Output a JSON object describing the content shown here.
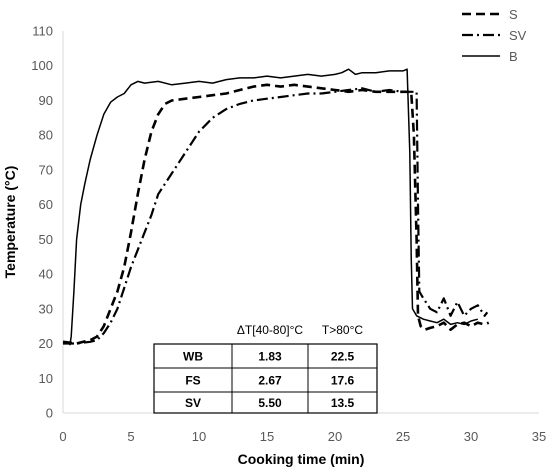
{
  "chart_data": {
    "type": "line",
    "title": "",
    "xlabel": "Cooking time (min)",
    "ylabel": "Temperature (°C)",
    "xlim": [
      0,
      35
    ],
    "ylim": [
      0,
      110
    ],
    "xticks": [
      "0",
      "5",
      "10",
      "15",
      "20",
      "25",
      "30",
      "35"
    ],
    "yticks": [
      "0",
      "10",
      "20",
      "30",
      "40",
      "50",
      "60",
      "70",
      "80",
      "90",
      "100",
      "110"
    ],
    "grid": false,
    "legend_position": "top-right",
    "series": [
      {
        "name": "S",
        "style": "dashed",
        "color": "#000000",
        "points": [
          [
            0,
            20.5
          ],
          [
            1,
            20
          ],
          [
            1.5,
            20.5
          ],
          [
            2,
            21
          ],
          [
            2.5,
            22
          ],
          [
            3,
            25
          ],
          [
            3.5,
            30
          ],
          [
            4,
            35
          ],
          [
            4.5,
            42
          ],
          [
            5,
            52
          ],
          [
            5.5,
            63
          ],
          [
            6,
            73
          ],
          [
            6.5,
            81
          ],
          [
            7,
            86
          ],
          [
            7.5,
            89
          ],
          [
            8,
            90
          ],
          [
            9,
            90.5
          ],
          [
            10,
            91
          ],
          [
            11,
            91.5
          ],
          [
            12,
            92
          ],
          [
            13,
            93
          ],
          [
            14,
            94
          ],
          [
            15,
            94.5
          ],
          [
            16,
            94
          ],
          [
            17,
            94.5
          ],
          [
            18,
            94
          ],
          [
            19,
            93.5
          ],
          [
            20,
            93
          ],
          [
            21,
            92.5
          ],
          [
            22,
            93
          ],
          [
            23,
            92.5
          ],
          [
            24,
            92.5
          ],
          [
            25,
            92.5
          ],
          [
            25.6,
            92.5
          ],
          [
            25.8,
            80
          ],
          [
            26,
            50
          ],
          [
            26.1,
            28
          ],
          [
            26.3,
            25
          ],
          [
            26.6,
            24
          ],
          [
            27,
            24.5
          ],
          [
            27.5,
            25
          ],
          [
            28,
            26
          ],
          [
            28.5,
            24
          ],
          [
            29,
            25.5
          ],
          [
            29.5,
            26
          ],
          [
            30,
            25
          ],
          [
            30.5,
            26
          ],
          [
            31,
            25.5
          ],
          [
            31.3,
            26
          ]
        ]
      },
      {
        "name": "SV",
        "style": "dash-dot",
        "color": "#000000",
        "points": [
          [
            0,
            20
          ],
          [
            1,
            20
          ],
          [
            2,
            20.5
          ],
          [
            2.5,
            21
          ],
          [
            3,
            23
          ],
          [
            3.5,
            26
          ],
          [
            4,
            30
          ],
          [
            4.5,
            36
          ],
          [
            5,
            42
          ],
          [
            5.5,
            47
          ],
          [
            6,
            52
          ],
          [
            6.5,
            57
          ],
          [
            7,
            63
          ],
          [
            7.5,
            66
          ],
          [
            8,
            69
          ],
          [
            8.5,
            72
          ],
          [
            9,
            75
          ],
          [
            9.5,
            78
          ],
          [
            10,
            81
          ],
          [
            10.5,
            83
          ],
          [
            11,
            85
          ],
          [
            12,
            87.5
          ],
          [
            13,
            89
          ],
          [
            14,
            90
          ],
          [
            15,
            90.5
          ],
          [
            16,
            91
          ],
          [
            17,
            91.5
          ],
          [
            18,
            92
          ],
          [
            19,
            92
          ],
          [
            20,
            92.5
          ],
          [
            21,
            93
          ],
          [
            22,
            93.5
          ],
          [
            23,
            92.5
          ],
          [
            24,
            93
          ],
          [
            25,
            92.5
          ],
          [
            26,
            92.5
          ],
          [
            26.1,
            60
          ],
          [
            26.2,
            35
          ],
          [
            26.5,
            33
          ],
          [
            27,
            30
          ],
          [
            27.5,
            29
          ],
          [
            28,
            33
          ],
          [
            28.5,
            28
          ],
          [
            29,
            32
          ],
          [
            29.5,
            28
          ],
          [
            30,
            30
          ],
          [
            30.5,
            31
          ],
          [
            31,
            28
          ],
          [
            31.2,
            29
          ]
        ]
      },
      {
        "name": "B",
        "style": "solid",
        "color": "#000000",
        "points": [
          [
            0.5,
            19.5
          ],
          [
            0.6,
            22
          ],
          [
            0.8,
            35
          ],
          [
            1,
            50
          ],
          [
            1.3,
            60
          ],
          [
            1.6,
            66
          ],
          [
            2,
            73
          ],
          [
            2.5,
            80
          ],
          [
            3,
            86
          ],
          [
            3.5,
            89.5
          ],
          [
            4,
            91
          ],
          [
            4.5,
            92
          ],
          [
            5,
            94.5
          ],
          [
            5.5,
            95.5
          ],
          [
            6,
            95
          ],
          [
            7,
            95.5
          ],
          [
            8,
            94.5
          ],
          [
            9,
            95
          ],
          [
            10,
            95.5
          ],
          [
            11,
            95
          ],
          [
            12,
            96
          ],
          [
            13,
            96.5
          ],
          [
            14,
            96.5
          ],
          [
            15,
            97
          ],
          [
            16,
            96.5
          ],
          [
            17,
            97
          ],
          [
            18,
            97.5
          ],
          [
            19,
            97
          ],
          [
            20,
            97.5
          ],
          [
            20.5,
            98
          ],
          [
            21,
            99
          ],
          [
            21.5,
            97.5
          ],
          [
            22,
            98
          ],
          [
            23,
            98
          ],
          [
            24,
            98.5
          ],
          [
            25,
            98.5
          ],
          [
            25.3,
            99
          ],
          [
            25.5,
            75
          ],
          [
            25.6,
            45
          ],
          [
            25.7,
            30
          ],
          [
            26,
            28
          ],
          [
            26.5,
            27
          ],
          [
            27,
            26.5
          ],
          [
            27.5,
            26
          ],
          [
            28,
            27
          ],
          [
            28.5,
            25.5
          ],
          [
            29,
            26
          ],
          [
            29.5,
            25.5
          ],
          [
            30,
            26.5
          ],
          [
            30.5,
            27
          ]
        ]
      }
    ],
    "table": {
      "headers": [
        "",
        "ΔT[40-80]°C",
        "T>80°C"
      ],
      "rows": [
        [
          "WB",
          "1.83",
          "22.5"
        ],
        [
          "FS",
          "2.67",
          "17.6"
        ],
        [
          "SV",
          "5.50",
          "13.5"
        ]
      ]
    }
  }
}
